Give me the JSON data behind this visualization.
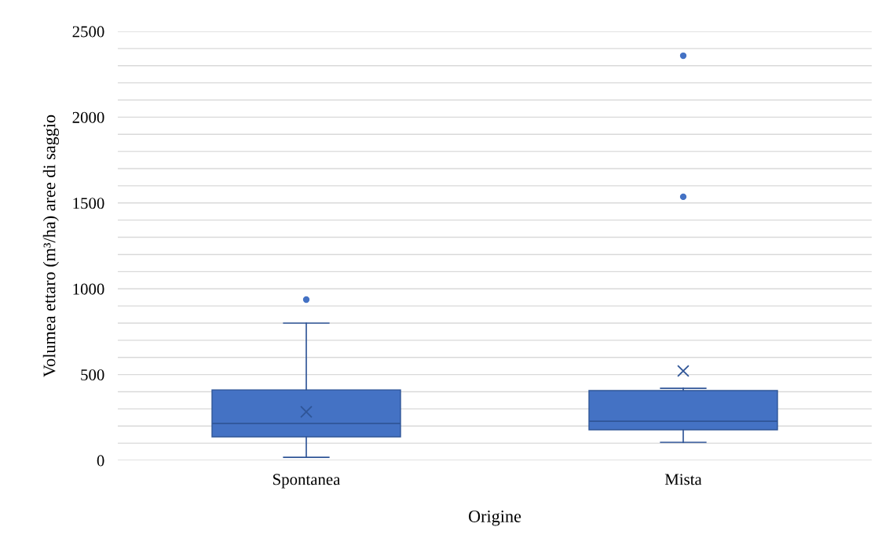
{
  "chart_data": {
    "type": "box",
    "categories": [
      "Spontanea",
      "Mista"
    ],
    "xlabel": "Origine",
    "ylabel": "Volumea ettaro (m³/ha) aree di saggio",
    "color": "#4472c4",
    "boxes": [
      {
        "low": 18,
        "q1": 137,
        "median": 215,
        "q3": 411,
        "high": 800,
        "mean": 283,
        "outliers": [
          937
        ]
      },
      {
        "low": 105,
        "q1": 178,
        "median": 228,
        "q3": 407,
        "high": 420,
        "mean": 521,
        "outliers": [
          1536,
          2358
        ]
      }
    ],
    "ylim": [
      0,
      2500
    ],
    "yticks": [
      0,
      {
        "value": 100,
        "label": null
      },
      {
        "value": 200,
        "label": null
      },
      {
        "value": 300,
        "label": null
      },
      {
        "value": 400,
        "label": null
      },
      500,
      {
        "value": 600,
        "label": null
      },
      {
        "value": 700,
        "label": null
      },
      {
        "value": 800,
        "label": null
      },
      {
        "value": 900,
        "label": null
      },
      1000,
      {
        "value": 1100,
        "label": null
      },
      {
        "value": 1200,
        "label": null
      },
      {
        "value": 1300,
        "label": null
      },
      {
        "value": 1400,
        "label": null
      },
      1500,
      {
        "value": 1600,
        "label": null
      },
      {
        "value": 1700,
        "label": null
      },
      {
        "value": 1800,
        "label": null
      },
      {
        "value": 1900,
        "label": null
      },
      2000,
      {
        "value": 2100,
        "label": null
      },
      {
        "value": 2200,
        "label": null
      },
      {
        "value": 2300,
        "label": null
      },
      {
        "value": 2400,
        "label": null
      },
      2500
    ],
    "grid": "y"
  }
}
